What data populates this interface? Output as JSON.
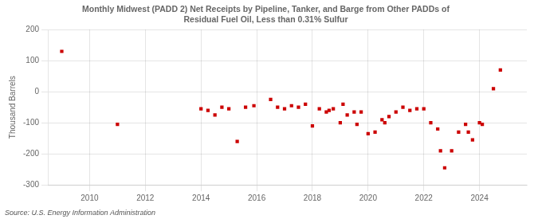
{
  "chart_data": {
    "type": "scatter",
    "title": "Monthly Midwest (PADD 2) Net Receipts by Pipeline, Tanker, and Barge from Other PADDs of\nResidual Fuel Oil, Less than 0.31% Sulfur",
    "ylabel": "Thousand Barrels",
    "source": "Source: U.S. Energy Information Administration",
    "color": "#cc0000",
    "marker": "square",
    "grid": true,
    "xlim": [
      2008.5,
      2025.7
    ],
    "xticks": [
      2010,
      2012,
      2014,
      2016,
      2018,
      2020,
      2022,
      2024
    ],
    "ylim": [
      -300,
      200
    ],
    "yticks": [
      -300,
      -200,
      -100,
      0,
      100,
      200
    ],
    "x": [
      2009.0,
      2011.0,
      2014.0,
      2014.25,
      2014.5,
      2014.75,
      2015.0,
      2015.3,
      2015.6,
      2015.9,
      2016.5,
      2016.75,
      2017.0,
      2017.25,
      2017.5,
      2017.75,
      2018.0,
      2018.25,
      2018.5,
      2018.6,
      2018.75,
      2019.0,
      2019.1,
      2019.25,
      2019.5,
      2019.6,
      2019.75,
      2020.0,
      2020.25,
      2020.5,
      2020.6,
      2020.75,
      2021.0,
      2021.25,
      2021.5,
      2021.75,
      2022.0,
      2022.25,
      2022.5,
      2022.6,
      2022.75,
      2023.0,
      2023.25,
      2023.5,
      2023.6,
      2023.75,
      2024.0,
      2024.1,
      2024.5,
      2024.75
    ],
    "values": [
      130,
      -105,
      -55,
      -60,
      -75,
      -50,
      -55,
      -160,
      -50,
      -45,
      -25,
      -50,
      -55,
      -45,
      -50,
      -40,
      -110,
      -55,
      -65,
      -60,
      -55,
      -100,
      -40,
      -75,
      -65,
      -105,
      -65,
      -135,
      -130,
      -90,
      -100,
      -80,
      -65,
      -50,
      -60,
      -55,
      -55,
      -100,
      -120,
      -190,
      -245,
      -190,
      -130,
      -105,
      -130,
      -155,
      -100,
      -105,
      10,
      70
    ]
  }
}
